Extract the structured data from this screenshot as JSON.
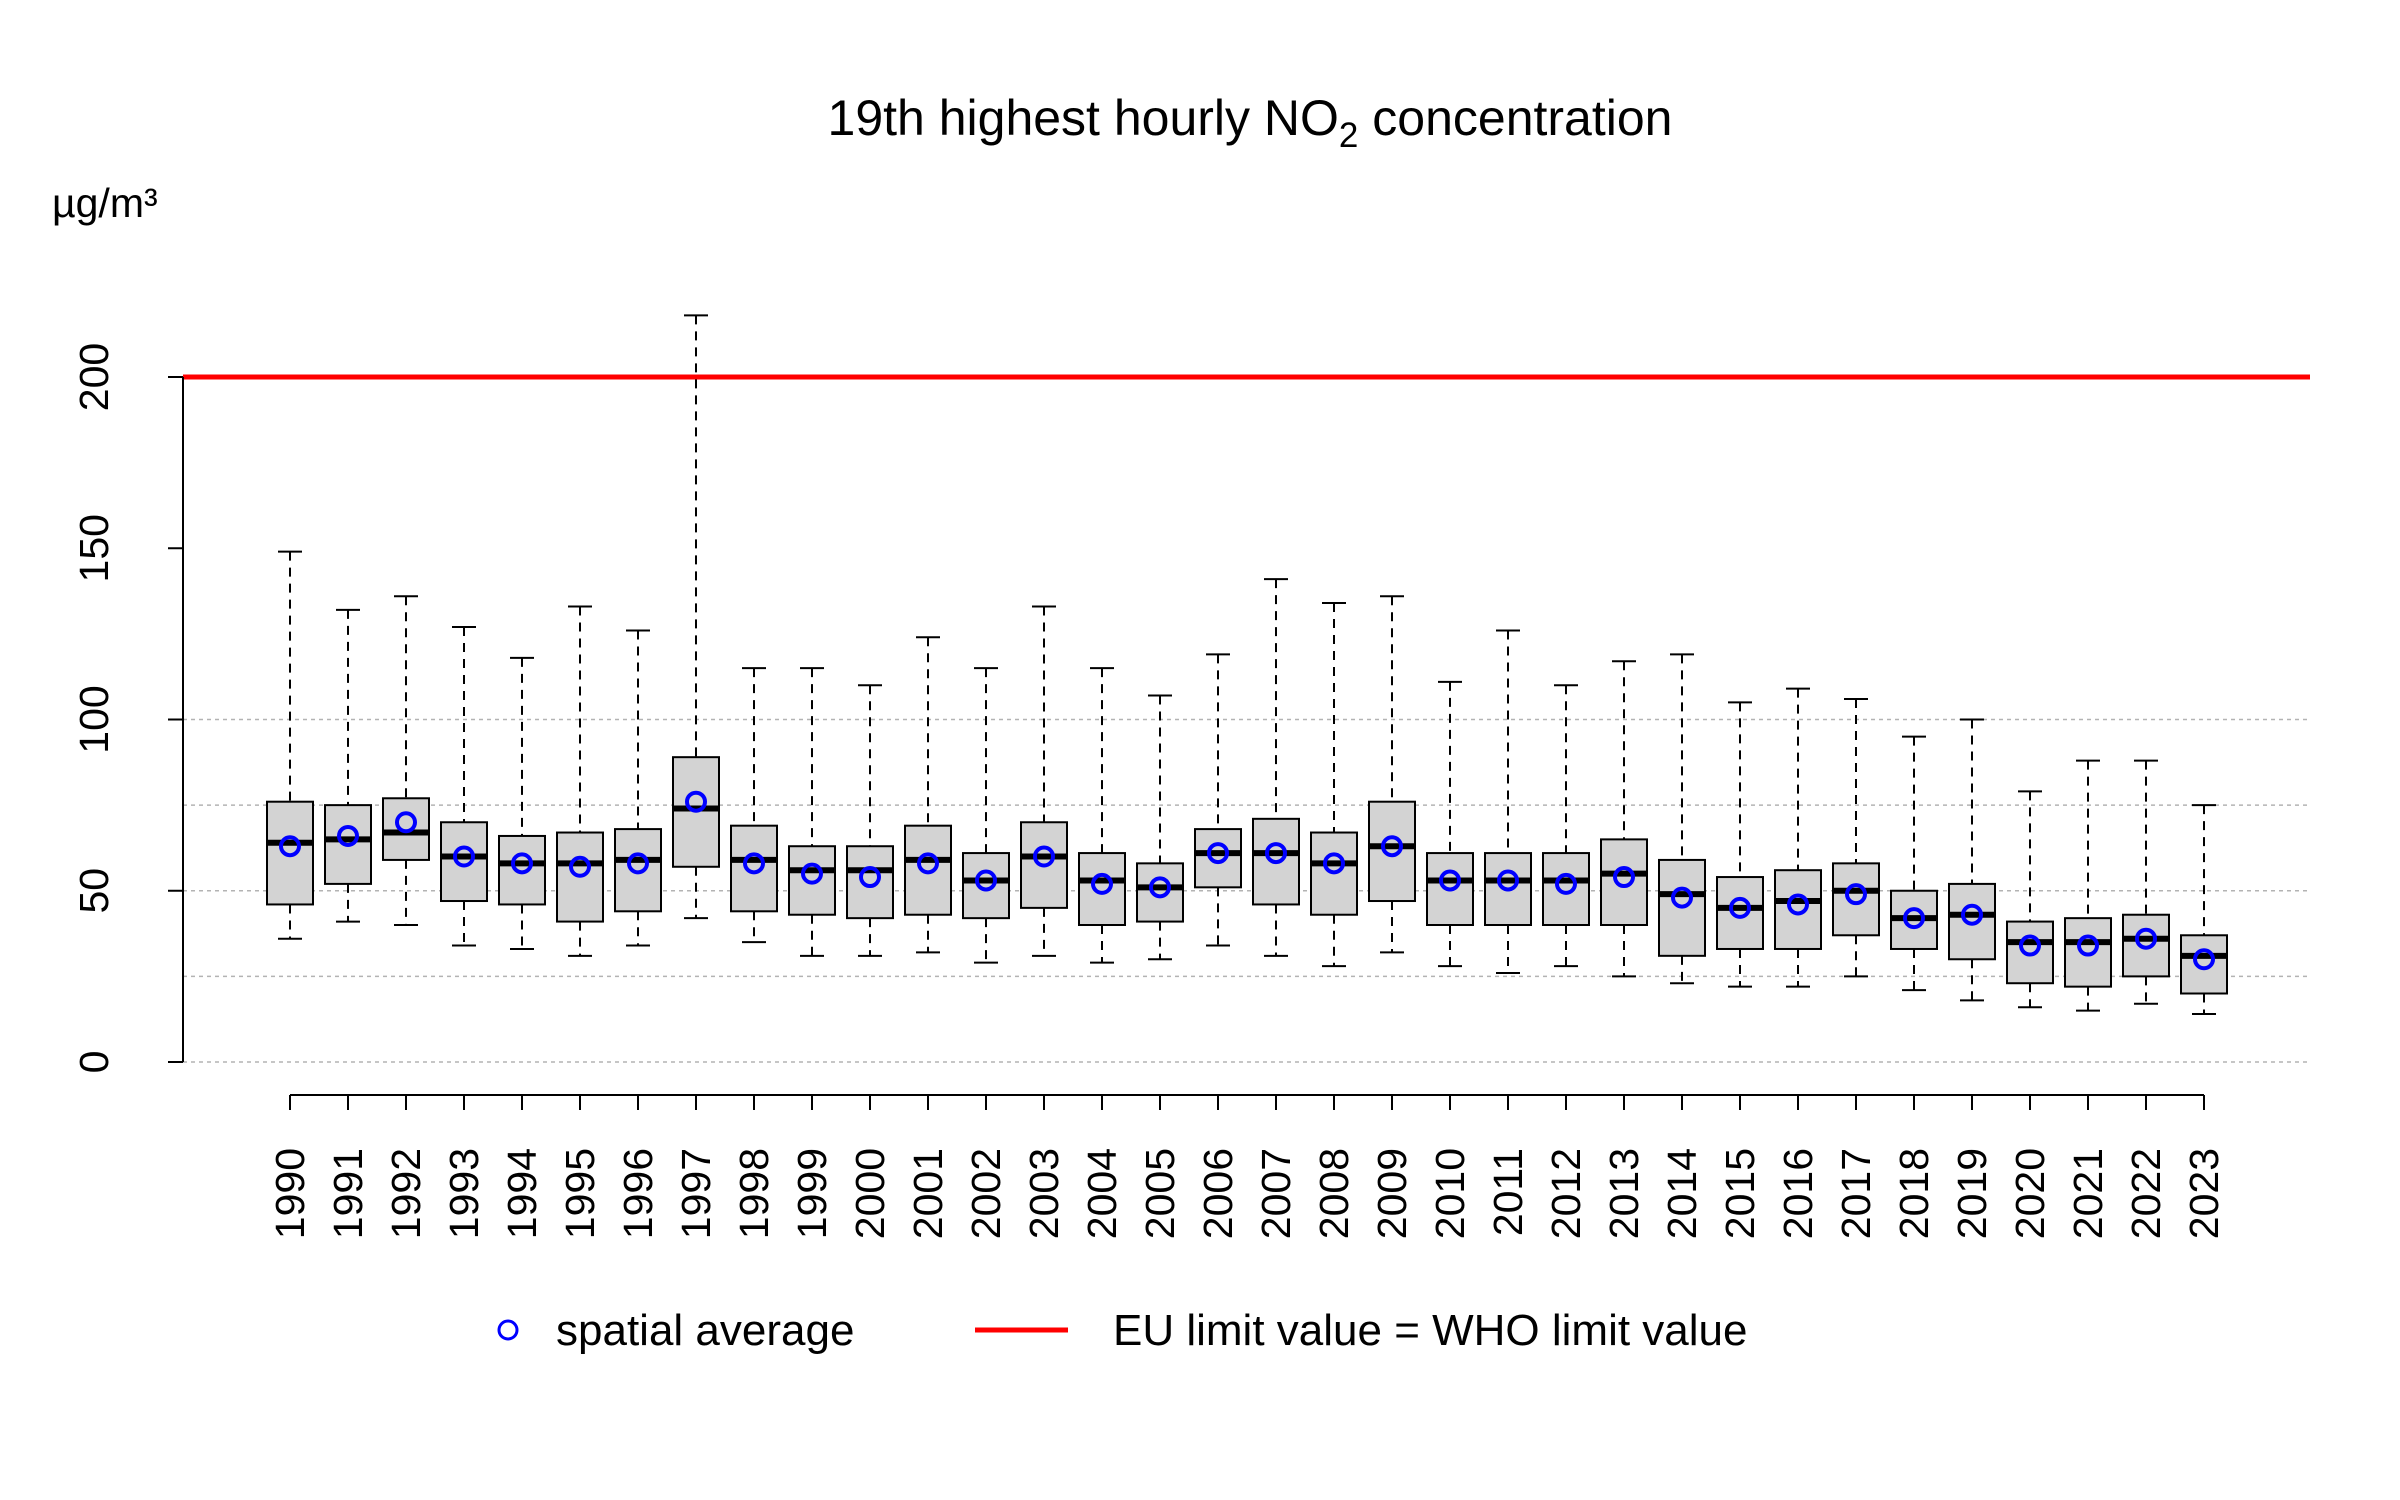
{
  "chart_data": {
    "type": "boxplot",
    "title": "19th highest hourly NO",
    "title_subscript": "2",
    "title_suffix": " concentration",
    "ylabel": "µg/m³",
    "xlabel": "",
    "ylim": [
      0,
      200
    ],
    "yticks": [
      0,
      50,
      100,
      150,
      200
    ],
    "gridlines": [
      0,
      25,
      50,
      75,
      100
    ],
    "categories": [
      "1990",
      "1991",
      "1992",
      "1993",
      "1994",
      "1995",
      "1996",
      "1997",
      "1998",
      "1999",
      "2000",
      "2001",
      "2002",
      "2003",
      "2004",
      "2005",
      "2006",
      "2007",
      "2008",
      "2009",
      "2010",
      "2011",
      "2012",
      "2013",
      "2014",
      "2015",
      "2016",
      "2017",
      "2018",
      "2019",
      "2020",
      "2021",
      "2022",
      "2023"
    ],
    "box_stats": {
      "min": [
        36,
        41,
        40,
        34,
        33,
        31,
        34,
        42,
        35,
        31,
        31,
        32,
        29,
        31,
        29,
        30,
        34,
        31,
        28,
        32,
        28,
        26,
        28,
        25,
        23,
        22,
        22,
        25,
        21,
        18,
        16,
        15,
        17,
        14
      ],
      "q1": [
        46,
        52,
        59,
        47,
        46,
        41,
        44,
        57,
        44,
        43,
        42,
        43,
        42,
        45,
        40,
        41,
        51,
        46,
        43,
        47,
        40,
        40,
        40,
        40,
        31,
        33,
        33,
        37,
        33,
        30,
        23,
        22,
        25,
        20
      ],
      "median": [
        64,
        65,
        67,
        60,
        58,
        58,
        59,
        74,
        59,
        56,
        56,
        59,
        53,
        60,
        53,
        51,
        61,
        61,
        58,
        63,
        53,
        53,
        53,
        55,
        49,
        45,
        47,
        50,
        42,
        43,
        35,
        35,
        36,
        31
      ],
      "q3": [
        76,
        75,
        77,
        70,
        66,
        67,
        68,
        89,
        69,
        63,
        63,
        69,
        61,
        70,
        61,
        58,
        68,
        71,
        67,
        76,
        61,
        61,
        61,
        65,
        59,
        54,
        56,
        58,
        50,
        52,
        41,
        42,
        43,
        37
      ],
      "max": [
        149,
        132,
        136,
        127,
        118,
        133,
        126,
        218,
        115,
        115,
        110,
        124,
        115,
        133,
        115,
        107,
        119,
        141,
        134,
        136,
        111,
        126,
        110,
        117,
        119,
        105,
        109,
        106,
        95,
        100,
        79,
        88,
        88,
        75
      ]
    },
    "series": [
      {
        "name": "spatial average",
        "type": "points",
        "color": "#0000ff",
        "values": [
          63,
          66,
          70,
          60,
          58,
          57,
          58,
          76,
          58,
          55,
          54,
          58,
          53,
          60,
          52,
          51,
          61,
          61,
          58,
          63,
          53,
          53,
          52,
          54,
          48,
          45,
          46,
          49,
          42,
          43,
          34,
          34,
          36,
          30
        ]
      }
    ],
    "reference_lines": [
      {
        "name": "EU limit value = WHO limit value",
        "value": 200,
        "color": "#ff0000"
      }
    ],
    "legend": [
      {
        "label": "spatial average",
        "symbol": "open-circle",
        "color": "#0000ff"
      },
      {
        "label": "EU limit value = WHO limit value",
        "symbol": "line",
        "color": "#ff0000"
      }
    ],
    "legend_position": "bottom",
    "box_fill": "#d3d3d3"
  }
}
